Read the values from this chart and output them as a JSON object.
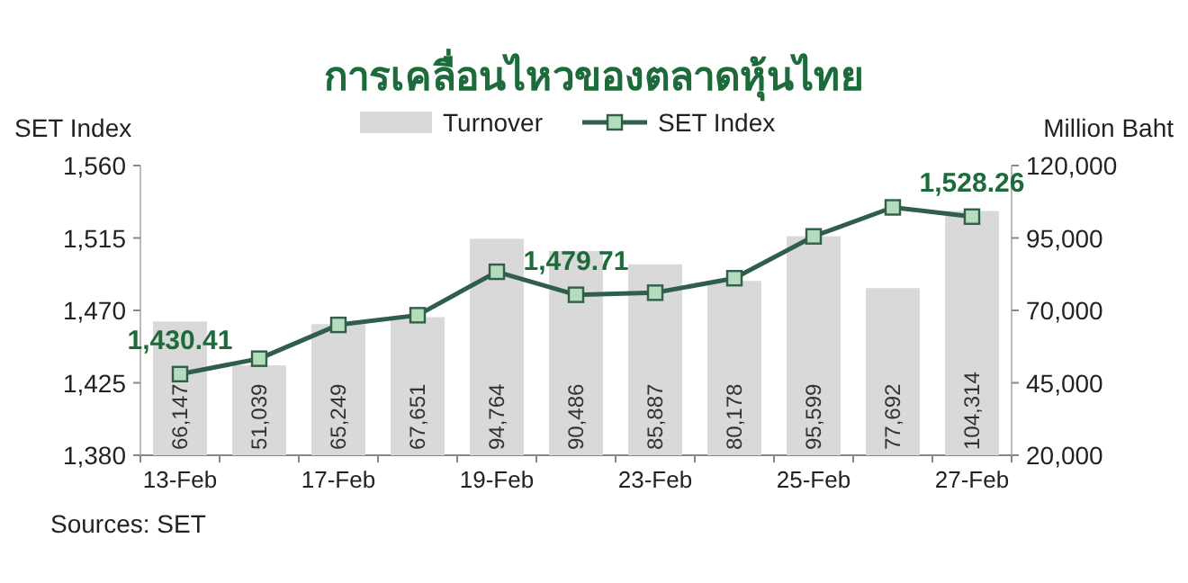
{
  "chart_data": {
    "type": "bar",
    "title": "การเคลื่อนไหวของตลาดหุ้นไทย",
    "ylabel": "SET Index",
    "y2label": "Million Baht",
    "categories": [
      "13-Feb",
      null,
      "17-Feb",
      null,
      "19-Feb",
      null,
      "23-Feb",
      null,
      "25-Feb",
      null,
      "27-Feb"
    ],
    "series": [
      {
        "name": "Turnover",
        "axis": "y2",
        "color": "#d9d9d9",
        "values": [
          66147,
          51039,
          65249,
          67651,
          94764,
          90486,
          85887,
          80178,
          95599,
          77692,
          104314
        ],
        "value_labels": [
          "66,147",
          "51,039",
          "65,249",
          "67,651",
          "94,764",
          "90,486",
          "85,887",
          "80,178",
          "95,599",
          "77,692",
          "104,314"
        ]
      },
      {
        "name": "SET Index",
        "type": "line",
        "axis": "y",
        "color": "#2f5e4b",
        "marker": "square",
        "values": [
          1430.41,
          1440,
          1461,
          1467,
          1494,
          1479.71,
          1481,
          1490,
          1516,
          1534,
          1528.26
        ],
        "value_labels": [
          "1,430.41",
          null,
          null,
          null,
          null,
          "1,479.71",
          null,
          null,
          null,
          null,
          "1,528.26"
        ]
      }
    ],
    "ylim": [
      1380,
      1560
    ],
    "yticks": [
      {
        "value": 1380,
        "label": "1,380"
      },
      {
        "value": 1425,
        "label": "1,425"
      },
      {
        "value": 1470,
        "label": "1,470"
      },
      {
        "value": 1515,
        "label": "1,515"
      },
      {
        "value": 1560,
        "label": "1,560"
      }
    ],
    "y2lim": [
      20000,
      120000
    ],
    "y2ticks": [
      {
        "value": 20000,
        "label": "20,000"
      },
      {
        "value": 45000,
        "label": "45,000"
      },
      {
        "value": 70000,
        "label": "70,000"
      },
      {
        "value": 95000,
        "label": "95,000"
      },
      {
        "value": 120000,
        "label": "120,000"
      }
    ],
    "legend": "top",
    "annotations": [
      "Sources: SET"
    ]
  }
}
